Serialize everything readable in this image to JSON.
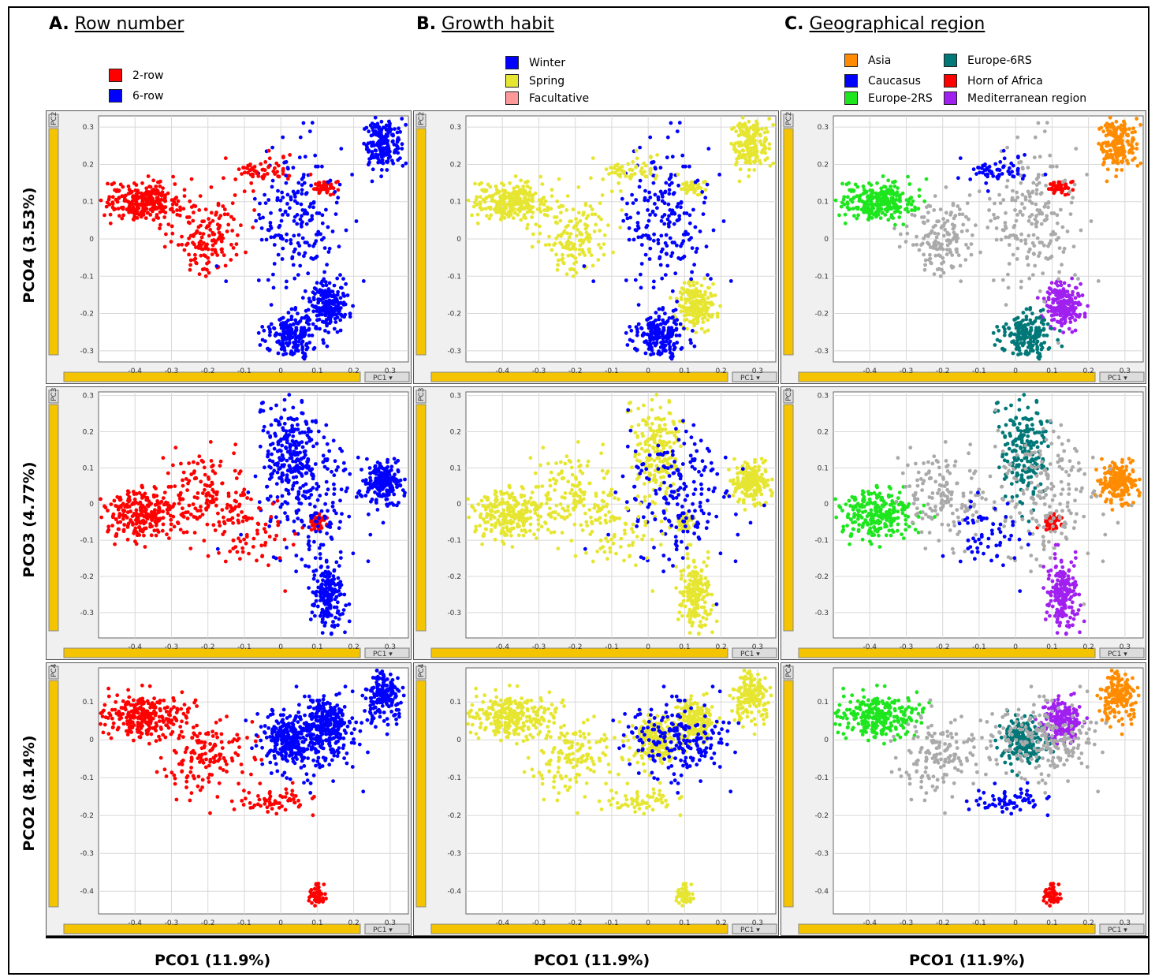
{
  "columns": [
    {
      "letter": "A.",
      "title": "Row number"
    },
    {
      "letter": "B.",
      "title": "Growth habit"
    },
    {
      "letter": "C.",
      "title": "Geographical region"
    }
  ],
  "legends": {
    "row_number": [
      {
        "label": "2-row",
        "color": "#ff0000"
      },
      {
        "label": "6-row",
        "color": "#0000ff"
      }
    ],
    "growth_habit": [
      {
        "label": "Winter",
        "color": "#0000ff"
      },
      {
        "label": "Spring",
        "color": "#e6e632"
      },
      {
        "label": "Facultative",
        "color": "#ff9999"
      }
    ],
    "region": [
      {
        "label": "Asia",
        "color": "#ff8c00"
      },
      {
        "label": "Caucasus",
        "color": "#0000ff"
      },
      {
        "label": "Europe-2RS",
        "color": "#1ee61e"
      },
      {
        "label": "Europe-6RS",
        "color": "#007878"
      },
      {
        "label": "Horn of Africa",
        "color": "#ff0000"
      },
      {
        "label": "Mediterranean region",
        "color": "#a020f0"
      }
    ]
  },
  "row_labels": [
    "PCO4 (3.53%)",
    "PCO3 (4.77%)",
    "PCO2 (8.14%)"
  ],
  "bottom_labels": [
    "PCO1 (11.9%)",
    "PCO1 (11.9%)",
    "PCO1 (11.9%)"
  ],
  "panel_ui": {
    "x_axis_button": "PC1",
    "y_axis_buttons": [
      "PC2",
      "PC3",
      "PC4"
    ]
  },
  "chart_data": {
    "type": "scatter",
    "xlabel": "PCO1 (11.9%)",
    "x_ticks": [
      "-0.4",
      "-0.3",
      "-0.2",
      "-0.1",
      "0",
      "0.1",
      "0.2",
      "0.3"
    ],
    "xlim": [
      -0.5,
      0.35
    ],
    "rows": [
      {
        "ylabel": "PCO4 (3.53%)",
        "ylim": [
          -0.33,
          0.33
        ],
        "y_ticks": [
          "0.3",
          "0.2",
          "0.1",
          "0",
          "-0.1",
          "-0.2",
          "-0.3"
        ]
      },
      {
        "ylabel": "PCO3 (4.77%)",
        "ylim": [
          -0.37,
          0.31
        ],
        "y_ticks": [
          "0.3",
          "0.2",
          "0.1",
          "0",
          "-0.1",
          "-0.2",
          "-0.3"
        ]
      },
      {
        "ylabel": "PCO2 (8.14%)",
        "ylim": [
          -0.46,
          0.19
        ],
        "y_ticks": [
          "0.1",
          "0",
          "-0.1",
          "-0.2",
          "-0.3",
          "-0.4"
        ]
      }
    ],
    "clusters": [
      [
        {
          "x": -0.38,
          "y": 0.1,
          "sx": 0.05,
          "sy": 0.025,
          "n": 260,
          "A": "2-row",
          "B": "Spring",
          "C": "Europe-2RS"
        },
        {
          "x": -0.2,
          "y": 0.01,
          "sx": 0.05,
          "sy": 0.05,
          "n": 150,
          "A": "2-row",
          "B": "Spring",
          "C": "other"
        },
        {
          "x": 0.28,
          "y": 0.26,
          "sx": 0.025,
          "sy": 0.035,
          "n": 180,
          "A": "6-row",
          "B": "Spring",
          "C": "Asia"
        },
        {
          "x": 0.12,
          "y": 0.14,
          "sx": 0.015,
          "sy": 0.01,
          "n": 50,
          "A": "2-row",
          "B": "Spring",
          "C": "Horn of Africa"
        },
        {
          "x": 0.13,
          "y": -0.18,
          "sx": 0.025,
          "sy": 0.03,
          "n": 200,
          "A": "6-row",
          "B": "Spring",
          "C": "Mediterranean region"
        },
        {
          "x": 0.03,
          "y": -0.26,
          "sx": 0.035,
          "sy": 0.03,
          "n": 200,
          "A": "6-row",
          "B": "Winter",
          "C": "Europe-6RS"
        },
        {
          "x": 0.05,
          "y": 0.05,
          "sx": 0.06,
          "sy": 0.1,
          "n": 200,
          "A": "6-row",
          "B": "Winter",
          "C": "other"
        },
        {
          "x": -0.05,
          "y": 0.18,
          "sx": 0.04,
          "sy": 0.02,
          "n": 60,
          "A": "2-row",
          "B": "Spring",
          "C": "Caucasus"
        }
      ],
      [
        {
          "x": -0.38,
          "y": -0.03,
          "sx": 0.05,
          "sy": 0.035,
          "n": 260,
          "A": "2-row",
          "B": "Spring",
          "C": "Europe-2RS"
        },
        {
          "x": -0.2,
          "y": 0.02,
          "sx": 0.06,
          "sy": 0.06,
          "n": 150,
          "A": "2-row",
          "B": "Spring",
          "C": "other"
        },
        {
          "x": 0.28,
          "y": 0.06,
          "sx": 0.025,
          "sy": 0.03,
          "n": 180,
          "A": "6-row",
          "B": "Spring",
          "C": "Asia"
        },
        {
          "x": 0.1,
          "y": -0.05,
          "sx": 0.015,
          "sy": 0.01,
          "n": 50,
          "A": "2-row",
          "B": "Spring",
          "C": "Horn of Africa"
        },
        {
          "x": 0.13,
          "y": -0.25,
          "sx": 0.02,
          "sy": 0.05,
          "n": 200,
          "A": "6-row",
          "B": "Spring",
          "C": "Mediterranean region"
        },
        {
          "x": 0.03,
          "y": 0.15,
          "sx": 0.035,
          "sy": 0.07,
          "n": 200,
          "A": "6-row",
          "B": "Spring",
          "C": "Europe-6RS"
        },
        {
          "x": 0.08,
          "y": 0.03,
          "sx": 0.08,
          "sy": 0.1,
          "n": 200,
          "A": "6-row",
          "B": "Winter",
          "C": "other"
        },
        {
          "x": -0.08,
          "y": -0.08,
          "sx": 0.05,
          "sy": 0.05,
          "n": 60,
          "A": "2-row",
          "B": "Spring",
          "C": "Caucasus"
        }
      ],
      [
        {
          "x": -0.38,
          "y": 0.06,
          "sx": 0.05,
          "sy": 0.03,
          "n": 260,
          "A": "2-row",
          "B": "Spring",
          "C": "Europe-2RS"
        },
        {
          "x": -0.2,
          "y": -0.04,
          "sx": 0.06,
          "sy": 0.05,
          "n": 150,
          "A": "2-row",
          "B": "Spring",
          "C": "other"
        },
        {
          "x": 0.28,
          "y": 0.12,
          "sx": 0.025,
          "sy": 0.035,
          "n": 180,
          "A": "6-row",
          "B": "Spring",
          "C": "Asia"
        },
        {
          "x": 0.1,
          "y": -0.41,
          "sx": 0.01,
          "sy": 0.015,
          "n": 50,
          "A": "2-row",
          "B": "Spring",
          "C": "Horn of Africa"
        },
        {
          "x": 0.13,
          "y": 0.05,
          "sx": 0.025,
          "sy": 0.03,
          "n": 200,
          "A": "6-row",
          "B": "Spring",
          "C": "Mediterranean region"
        },
        {
          "x": 0.02,
          "y": 0.0,
          "sx": 0.03,
          "sy": 0.03,
          "n": 200,
          "A": "6-row",
          "B": "Spring",
          "C": "Europe-6RS"
        },
        {
          "x": 0.08,
          "y": 0.0,
          "sx": 0.07,
          "sy": 0.05,
          "n": 200,
          "A": "6-row",
          "B": "Winter",
          "C": "other"
        },
        {
          "x": -0.02,
          "y": -0.16,
          "sx": 0.05,
          "sy": 0.015,
          "n": 60,
          "A": "2-row",
          "B": "Spring",
          "C": "Caucasus"
        }
      ]
    ]
  }
}
